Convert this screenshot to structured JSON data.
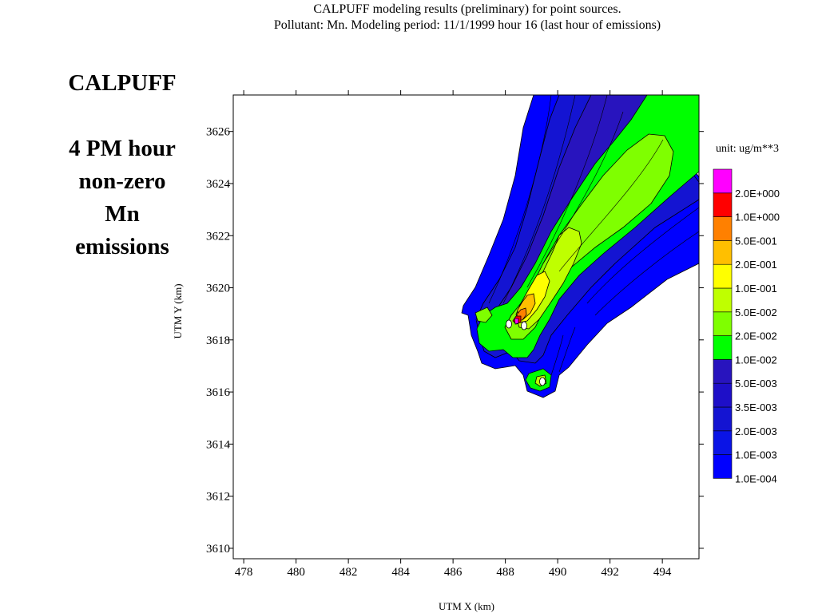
{
  "title_line1": "CALPUFF modeling results (preliminary) for point sources.",
  "title_line2": "Pollutant: Mn. Modeling period: 11/1/1999 hour 16 (last hour of emissions)",
  "side_heading": "CALPUFF",
  "side_description": [
    "4 PM hour",
    "non-zero",
    "Mn",
    "emissions"
  ],
  "chart_data": {
    "type": "heatmap",
    "xlabel": "UTM X (km)",
    "ylabel": "UTM Y (km)",
    "xlim": [
      477.6,
      495.4
    ],
    "ylim": [
      3609.6,
      3627.4
    ],
    "x_ticks": [
      478,
      480,
      482,
      484,
      486,
      488,
      490,
      492,
      494
    ],
    "y_ticks": [
      3610,
      3612,
      3614,
      3616,
      3618,
      3620,
      3622,
      3624,
      3626
    ],
    "legend": {
      "unit": "unit: ug/m**3",
      "placement": "right",
      "levels": [
        {
          "label": "1.0E-004",
          "color": "#0000ff"
        },
        {
          "label": "1.0E-003",
          "color": "#0a14e6"
        },
        {
          "label": "2.0E-003",
          "color": "#1414d2"
        },
        {
          "label": "3.5E-003",
          "color": "#1e0fc8"
        },
        {
          "label": "5.0E-003",
          "color": "#2814be"
        },
        {
          "label": "1.0E-002",
          "color": "#00ff00"
        },
        {
          "label": "2.0E-002",
          "color": "#7fff00"
        },
        {
          "label": "5.0E-002",
          "color": "#bfff00"
        },
        {
          "label": "1.0E-001",
          "color": "#ffff00"
        },
        {
          "label": "2.0E-001",
          "color": "#ffbf00"
        },
        {
          "label": "5.0E-001",
          "color": "#ff8000"
        },
        {
          "label": "1.0E+000",
          "color": "#ff0000"
        },
        {
          "label": "2.0E+000",
          "color": "#ff00ff"
        }
      ]
    },
    "plume_colors": {
      "low_outer": "#0000ff",
      "low_mid": "#1414d2",
      "low_inner": "#2814be",
      "green": "#00ff00",
      "light_green": "#7fff00",
      "yellow_green": "#bfff00",
      "yellow": "#ffff00",
      "orange": "#ffbf00",
      "dark_orange": "#ff8000",
      "red": "#ff0000",
      "magenta": "#ff00ff"
    }
  }
}
